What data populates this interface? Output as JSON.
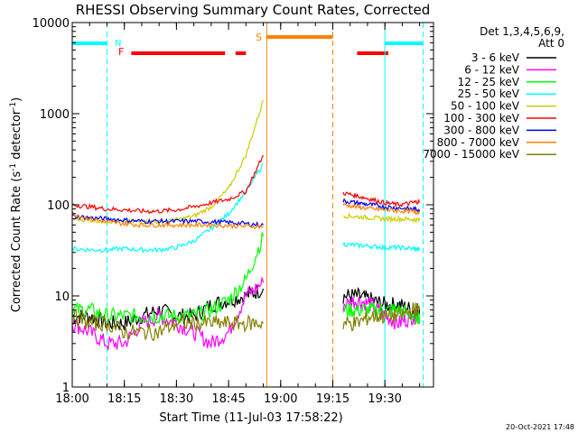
{
  "chart_data": {
    "type": "line",
    "title": "RHESSI Observing Summary Count Rates, Corrected",
    "xlabel": "Start Time (11-Jul-03 17:58:22)",
    "ylabel": "Corrected Count Rate (s",
    "ylabel_sup": "-1",
    "ylabel_mid": " detector",
    "ylabel_sup2": "-1",
    "ylabel_end": ")",
    "yscale": "log",
    "ylim": [
      1,
      10000
    ],
    "xlim_min": [
      0,
      104
    ],
    "y_ticks": [
      {
        "v": 1,
        "label": "1"
      },
      {
        "v": 10,
        "label": "10"
      },
      {
        "v": 100,
        "label": "100"
      },
      {
        "v": 1000,
        "label": "1000"
      },
      {
        "v": 10000,
        "label": "10000"
      }
    ],
    "x_ticks": [
      {
        "t": 0,
        "label": "18:00"
      },
      {
        "t": 15,
        "label": "18:15"
      },
      {
        "t": 30,
        "label": "18:30"
      },
      {
        "t": 45,
        "label": "18:45"
      },
      {
        "t": 60,
        "label": "19:00"
      },
      {
        "t": 75,
        "label": "19:15"
      },
      {
        "t": 90,
        "label": "19:30"
      }
    ],
    "legend": {
      "header1": "Det 1,3,4,5,6,9,",
      "header2": "Att 0",
      "entries": [
        {
          "label": "3 - 6 keV",
          "color": "#000000"
        },
        {
          "label": "6 - 12 keV",
          "color": "#ff00ff"
        },
        {
          "label": "12 - 25 keV",
          "color": "#00ff00"
        },
        {
          "label": "25 - 50 keV",
          "color": "#00ffff"
        },
        {
          "label": "50 - 100 keV",
          "color": "#cccc00"
        },
        {
          "label": "100 - 300 keV",
          "color": "#ff0000"
        },
        {
          "label": "300 - 800 keV",
          "color": "#0000ff"
        },
        {
          "label": "800 - 7000 keV",
          "color": "#ff8000"
        },
        {
          "label": "7000 - 15000 keV",
          "color": "#808000"
        }
      ]
    },
    "flags": [
      {
        "label": "N",
        "color": "#00ffff"
      },
      {
        "label": "F",
        "color": "#ff0000"
      },
      {
        "label": "S",
        "color": "#ff8000"
      }
    ],
    "timestamp": "20-Oct-2021 17:48",
    "night_boundaries_min": [
      0,
      10,
      90,
      101
    ],
    "saa_boundaries_min": [
      56,
      75
    ],
    "night_bars": [
      [
        0,
        10
      ],
      [
        90,
        101
      ]
    ],
    "saa_bar": [
      56,
      75
    ],
    "flare_segments": [
      [
        17,
        44
      ],
      [
        47,
        50
      ],
      [
        82,
        91
      ]
    ],
    "series": [
      {
        "name": "3 - 6 keV",
        "color": "#000000",
        "segments": [
          {
            "x": [
              0,
              5,
              10,
              15,
              20,
              25,
              30,
              35,
              40,
              45,
              50,
              55
            ],
            "y": [
              6,
              6,
              5,
              5,
              6,
              7,
              6,
              6,
              8,
              9,
              10,
              12
            ]
          },
          {
            "x": [
              78,
              82,
              86,
              90,
              94,
              98,
              100
            ],
            "y": [
              10,
              10,
              9,
              8,
              8,
              7,
              7
            ]
          }
        ]
      },
      {
        "name": "6 - 12 keV",
        "color": "#ff00ff",
        "segments": [
          {
            "x": [
              0,
              5,
              10,
              15,
              20,
              25,
              30,
              35,
              40,
              45,
              50,
              55
            ],
            "y": [
              5,
              4,
              3,
              3,
              5,
              6,
              5,
              4,
              3,
              4,
              10,
              14
            ]
          },
          {
            "x": [
              78,
              82,
              86,
              90,
              94,
              98,
              100
            ],
            "y": [
              8,
              9,
              8,
              6,
              5,
              6,
              6
            ]
          }
        ]
      },
      {
        "name": "12 - 25 keV",
        "color": "#00ff00",
        "segments": [
          {
            "x": [
              0,
              5,
              10,
              15,
              20,
              25,
              30,
              35,
              40,
              45,
              50,
              55
            ],
            "y": [
              7,
              7,
              6,
              6,
              6,
              6,
              6,
              6,
              7,
              9,
              15,
              45
            ]
          },
          {
            "x": [
              78,
              82,
              86,
              90,
              94,
              98,
              100
            ],
            "y": [
              7,
              7,
              7,
              7,
              7,
              6,
              6
            ]
          }
        ]
      },
      {
        "name": "25 - 50 keV",
        "color": "#00ffff",
        "segments": [
          {
            "x": [
              0,
              5,
              10,
              15,
              20,
              25,
              30,
              35,
              40,
              45,
              50,
              55
            ],
            "y": [
              33,
              32,
              32,
              33,
              32,
              32,
              34,
              40,
              55,
              80,
              140,
              280
            ]
          },
          {
            "x": [
              78,
              82,
              86,
              90,
              94,
              98,
              100
            ],
            "y": [
              37,
              36,
              35,
              34,
              34,
              33,
              32
            ]
          }
        ]
      },
      {
        "name": "50 - 100 keV",
        "color": "#cccc00",
        "segments": [
          {
            "x": [
              0,
              5,
              10,
              15,
              20,
              25,
              30,
              35,
              40,
              45,
              50,
              55
            ],
            "y": [
              70,
              68,
              66,
              65,
              65,
              65,
              68,
              75,
              95,
              150,
              350,
              1400
            ]
          },
          {
            "x": [
              78,
              82,
              86,
              90,
              94,
              98,
              100
            ],
            "y": [
              76,
              74,
              72,
              70,
              70,
              69,
              68
            ]
          }
        ]
      },
      {
        "name": "100 - 300 keV",
        "color": "#ff0000",
        "segments": [
          {
            "x": [
              0,
              5,
              10,
              15,
              20,
              25,
              30,
              35,
              40,
              45,
              50,
              55
            ],
            "y": [
              100,
              95,
              90,
              88,
              85,
              85,
              88,
              95,
              105,
              115,
              140,
              350
            ]
          },
          {
            "x": [
              78,
              82,
              86,
              90,
              94,
              98,
              100
            ],
            "y": [
              135,
              125,
              115,
              105,
              100,
              105,
              110
            ]
          }
        ]
      },
      {
        "name": "300 - 800 keV",
        "color": "#0000ff",
        "segments": [
          {
            "x": [
              0,
              5,
              10,
              15,
              20,
              25,
              30,
              35,
              40,
              45,
              50,
              55
            ],
            "y": [
              75,
              72,
              70,
              68,
              66,
              66,
              66,
              66,
              65,
              64,
              62,
              60
            ]
          },
          {
            "x": [
              78,
              82,
              86,
              90,
              94,
              98,
              100
            ],
            "y": [
              110,
              105,
              100,
              95,
              92,
              90,
              88
            ]
          }
        ]
      },
      {
        "name": "800 - 7000 keV",
        "color": "#ff8000",
        "segments": [
          {
            "x": [
              0,
              5,
              10,
              15,
              20,
              25,
              30,
              35,
              40,
              45,
              50,
              55
            ],
            "y": [
              80,
              70,
              65,
              62,
              60,
              60,
              60,
              60,
              60,
              59,
              58,
              58
            ]
          },
          {
            "x": [
              78,
              82,
              86,
              90,
              94,
              98,
              100
            ],
            "y": [
              100,
              95,
              90,
              88,
              86,
              84,
              83
            ]
          }
        ]
      },
      {
        "name": "7000 - 15000 keV",
        "color": "#808000",
        "segments": [
          {
            "x": [
              0,
              5,
              10,
              15,
              20,
              25,
              30,
              35,
              40,
              45,
              50,
              55
            ],
            "y": [
              6,
              5,
              5,
              4,
              4,
              4,
              5,
              5,
              5,
              5,
              5,
              5
            ]
          },
          {
            "x": [
              78,
              82,
              86,
              90,
              94,
              98,
              100
            ],
            "y": [
              5,
              5,
              6,
              6,
              6,
              7,
              7
            ]
          }
        ]
      }
    ]
  }
}
